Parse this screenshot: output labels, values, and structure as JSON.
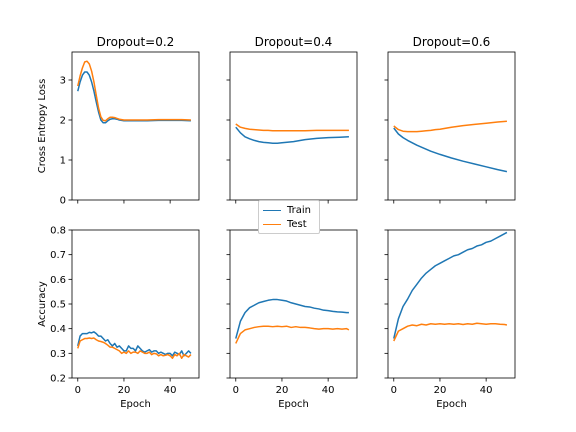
{
  "colors": {
    "train": "#1f77b4",
    "test": "#ff7f0e"
  },
  "legend": {
    "train": "Train",
    "test": "Test"
  },
  "chart_data": [
    {
      "type": "line",
      "title": "Dropout=0.2",
      "xlabel": "",
      "ylabel": "Cross Entropy Loss",
      "xlim": [
        -2.5,
        52.5
      ],
      "ylim": [
        0,
        3.7
      ],
      "xticks": [
        0,
        20,
        40
      ],
      "yticks": [
        0,
        1,
        2,
        3
      ],
      "grid": false,
      "series": [
        {
          "name": "Train",
          "x": [
            0,
            1,
            2,
            3,
            4,
            5,
            6,
            7,
            8,
            9,
            10,
            11,
            12,
            13,
            14,
            15,
            16,
            17,
            18,
            19,
            20,
            22,
            25,
            30,
            35,
            40,
            45,
            49
          ],
          "y": [
            2.72,
            2.95,
            3.12,
            3.2,
            3.2,
            3.12,
            2.95,
            2.72,
            2.45,
            2.2,
            2.0,
            1.93,
            1.93,
            1.98,
            2.02,
            2.03,
            2.03,
            2.02,
            2.0,
            1.99,
            1.98,
            1.98,
            1.98,
            1.98,
            1.99,
            1.99,
            1.99,
            1.98
          ]
        },
        {
          "name": "Test",
          "x": [
            0,
            1,
            2,
            3,
            4,
            5,
            6,
            7,
            8,
            9,
            10,
            11,
            12,
            13,
            14,
            15,
            16,
            17,
            18,
            19,
            20,
            22,
            25,
            30,
            35,
            40,
            45,
            49
          ],
          "y": [
            2.85,
            3.1,
            3.3,
            3.45,
            3.47,
            3.4,
            3.22,
            2.95,
            2.62,
            2.3,
            2.08,
            1.99,
            1.98,
            2.03,
            2.07,
            2.07,
            2.06,
            2.04,
            2.02,
            2.01,
            2.0,
            2.0,
            2.0,
            2.0,
            2.01,
            2.01,
            2.01,
            2.0
          ]
        }
      ]
    },
    {
      "type": "line",
      "title": "Dropout=0.4",
      "xlabel": "",
      "ylabel": "",
      "xlim": [
        -2.5,
        52.5
      ],
      "ylim": [
        0,
        3.7
      ],
      "xticks": [
        0,
        20,
        40
      ],
      "yticks": [
        0,
        1,
        2,
        3
      ],
      "grid": false,
      "series": [
        {
          "name": "Train",
          "x": [
            0,
            2,
            4,
            6,
            8,
            10,
            12,
            14,
            16,
            18,
            20,
            25,
            30,
            35,
            40,
            45,
            49
          ],
          "y": [
            1.82,
            1.68,
            1.58,
            1.53,
            1.49,
            1.46,
            1.44,
            1.43,
            1.42,
            1.42,
            1.43,
            1.46,
            1.51,
            1.54,
            1.56,
            1.57,
            1.58
          ]
        },
        {
          "name": "Test",
          "x": [
            0,
            2,
            4,
            6,
            8,
            10,
            12,
            14,
            16,
            18,
            20,
            25,
            30,
            35,
            40,
            45,
            49
          ],
          "y": [
            1.9,
            1.82,
            1.79,
            1.77,
            1.76,
            1.75,
            1.74,
            1.74,
            1.73,
            1.73,
            1.73,
            1.73,
            1.73,
            1.74,
            1.74,
            1.74,
            1.74
          ]
        }
      ]
    },
    {
      "type": "line",
      "title": "Dropout=0.6",
      "xlabel": "",
      "ylabel": "",
      "xlim": [
        -2.5,
        52.5
      ],
      "ylim": [
        0,
        3.7
      ],
      "xticks": [
        0,
        20,
        40
      ],
      "yticks": [
        0,
        1,
        2,
        3
      ],
      "grid": false,
      "series": [
        {
          "name": "Train",
          "x": [
            0,
            2,
            4,
            6,
            8,
            10,
            12,
            14,
            16,
            18,
            20,
            25,
            30,
            35,
            40,
            45,
            49
          ],
          "y": [
            1.8,
            1.65,
            1.56,
            1.49,
            1.43,
            1.37,
            1.32,
            1.27,
            1.22,
            1.18,
            1.14,
            1.05,
            0.97,
            0.9,
            0.83,
            0.76,
            0.71
          ]
        },
        {
          "name": "Test",
          "x": [
            0,
            2,
            4,
            6,
            8,
            10,
            12,
            14,
            16,
            18,
            20,
            25,
            30,
            35,
            40,
            45,
            49
          ],
          "y": [
            1.85,
            1.76,
            1.72,
            1.71,
            1.71,
            1.71,
            1.72,
            1.73,
            1.74,
            1.76,
            1.77,
            1.82,
            1.86,
            1.89,
            1.92,
            1.95,
            1.97
          ]
        }
      ]
    },
    {
      "type": "line",
      "title": "",
      "xlabel": "Epoch",
      "ylabel": "Accuracy",
      "xlim": [
        -2.5,
        52.5
      ],
      "ylim": [
        0.2,
        0.8
      ],
      "xticks": [
        0,
        20,
        40
      ],
      "yticks": [
        0.2,
        0.3,
        0.4,
        0.5,
        0.6,
        0.7,
        0.8
      ],
      "grid": false,
      "series": [
        {
          "name": "Train",
          "x": [
            0,
            1,
            2,
            3,
            4,
            5,
            6,
            7,
            8,
            9,
            10,
            11,
            12,
            13,
            14,
            15,
            16,
            17,
            18,
            19,
            20,
            21,
            22,
            23,
            24,
            25,
            26,
            27,
            28,
            29,
            30,
            31,
            32,
            33,
            34,
            35,
            36,
            37,
            38,
            39,
            40,
            41,
            42,
            43,
            44,
            45,
            46,
            47,
            48,
            49
          ],
          "y": [
            0.33,
            0.37,
            0.38,
            0.38,
            0.38,
            0.385,
            0.383,
            0.387,
            0.38,
            0.37,
            0.37,
            0.36,
            0.35,
            0.355,
            0.34,
            0.33,
            0.34,
            0.325,
            0.33,
            0.32,
            0.31,
            0.31,
            0.33,
            0.32,
            0.32,
            0.31,
            0.33,
            0.32,
            0.31,
            0.305,
            0.31,
            0.315,
            0.305,
            0.31,
            0.31,
            0.3,
            0.305,
            0.3,
            0.295,
            0.3,
            0.3,
            0.29,
            0.305,
            0.3,
            0.295,
            0.31,
            0.29,
            0.3,
            0.31,
            0.3
          ]
        },
        {
          "name": "Test",
          "x": [
            0,
            1,
            2,
            3,
            4,
            5,
            6,
            7,
            8,
            9,
            10,
            11,
            12,
            13,
            14,
            15,
            16,
            17,
            18,
            19,
            20,
            21,
            22,
            23,
            24,
            25,
            26,
            27,
            28,
            29,
            30,
            31,
            32,
            33,
            34,
            35,
            36,
            37,
            38,
            39,
            40,
            41,
            42,
            43,
            44,
            45,
            46,
            47,
            48,
            49
          ],
          "y": [
            0.32,
            0.35,
            0.355,
            0.36,
            0.36,
            0.362,
            0.36,
            0.362,
            0.355,
            0.35,
            0.348,
            0.345,
            0.34,
            0.333,
            0.325,
            0.325,
            0.32,
            0.315,
            0.31,
            0.3,
            0.305,
            0.3,
            0.31,
            0.3,
            0.305,
            0.305,
            0.3,
            0.31,
            0.305,
            0.3,
            0.3,
            0.305,
            0.295,
            0.3,
            0.298,
            0.29,
            0.295,
            0.29,
            0.292,
            0.295,
            0.29,
            0.28,
            0.295,
            0.29,
            0.3,
            0.28,
            0.295,
            0.29,
            0.285,
            0.295
          ]
        }
      ]
    },
    {
      "type": "line",
      "title": "",
      "xlabel": "Epoch",
      "ylabel": "",
      "xlim": [
        -2.5,
        52.5
      ],
      "ylim": [
        0.2,
        0.8
      ],
      "xticks": [
        0,
        20,
        40
      ],
      "yticks": [
        0.2,
        0.3,
        0.4,
        0.5,
        0.6,
        0.7,
        0.8
      ],
      "grid": false,
      "series": [
        {
          "name": "Train",
          "x": [
            0,
            2,
            4,
            6,
            8,
            10,
            12,
            14,
            16,
            18,
            20,
            22,
            24,
            26,
            28,
            30,
            32,
            34,
            36,
            38,
            40,
            42,
            44,
            46,
            48,
            49
          ],
          "y": [
            0.36,
            0.43,
            0.465,
            0.485,
            0.495,
            0.505,
            0.51,
            0.515,
            0.518,
            0.518,
            0.515,
            0.512,
            0.505,
            0.5,
            0.495,
            0.49,
            0.488,
            0.483,
            0.48,
            0.475,
            0.473,
            0.47,
            0.468,
            0.467,
            0.465,
            0.465
          ]
        },
        {
          "name": "Test",
          "x": [
            0,
            2,
            4,
            6,
            8,
            10,
            12,
            14,
            16,
            18,
            20,
            22,
            24,
            26,
            28,
            30,
            32,
            34,
            36,
            38,
            40,
            42,
            44,
            46,
            48,
            49
          ],
          "y": [
            0.34,
            0.38,
            0.395,
            0.4,
            0.405,
            0.408,
            0.41,
            0.41,
            0.408,
            0.41,
            0.408,
            0.41,
            0.405,
            0.408,
            0.405,
            0.405,
            0.403,
            0.4,
            0.398,
            0.4,
            0.4,
            0.398,
            0.4,
            0.398,
            0.4,
            0.395
          ]
        }
      ]
    },
    {
      "type": "line",
      "title": "",
      "xlabel": "Epoch",
      "ylabel": "",
      "xlim": [
        -2.5,
        52.5
      ],
      "ylim": [
        0.2,
        0.8
      ],
      "xticks": [
        0,
        20,
        40
      ],
      "yticks": [
        0.2,
        0.3,
        0.4,
        0.5,
        0.6,
        0.7,
        0.8
      ],
      "grid": false,
      "series": [
        {
          "name": "Train",
          "x": [
            0,
            2,
            4,
            6,
            8,
            10,
            12,
            14,
            16,
            18,
            20,
            22,
            24,
            26,
            28,
            30,
            32,
            34,
            36,
            38,
            40,
            42,
            44,
            46,
            48,
            49
          ],
          "y": [
            0.36,
            0.44,
            0.49,
            0.52,
            0.555,
            0.58,
            0.605,
            0.625,
            0.64,
            0.655,
            0.665,
            0.675,
            0.685,
            0.695,
            0.7,
            0.71,
            0.72,
            0.725,
            0.735,
            0.74,
            0.75,
            0.755,
            0.765,
            0.775,
            0.785,
            0.79
          ]
        },
        {
          "name": "Test",
          "x": [
            0,
            2,
            4,
            6,
            8,
            10,
            12,
            14,
            16,
            18,
            20,
            22,
            24,
            26,
            28,
            30,
            32,
            34,
            36,
            38,
            40,
            42,
            44,
            46,
            48,
            49
          ],
          "y": [
            0.35,
            0.39,
            0.4,
            0.41,
            0.415,
            0.412,
            0.418,
            0.415,
            0.42,
            0.418,
            0.42,
            0.418,
            0.42,
            0.418,
            0.42,
            0.417,
            0.42,
            0.418,
            0.422,
            0.42,
            0.418,
            0.42,
            0.42,
            0.418,
            0.417,
            0.415
          ]
        }
      ]
    }
  ]
}
